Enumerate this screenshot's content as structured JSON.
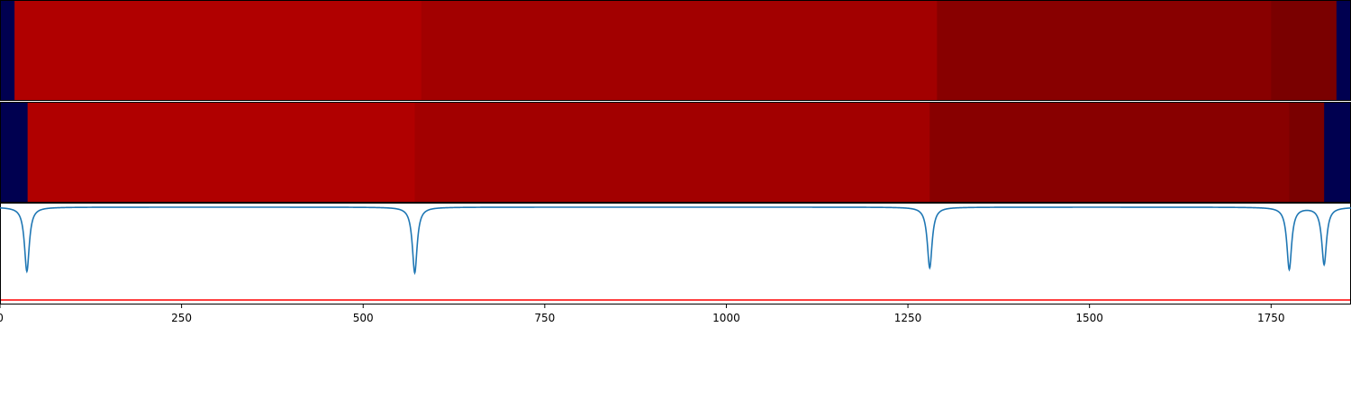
{
  "chart_data": [
    {
      "type": "heatmap",
      "panel": "top-strip",
      "x_range": [
        0,
        1860
      ],
      "segments": [
        {
          "start": 0,
          "end": 20,
          "color": "#000050"
        },
        {
          "start": 20,
          "end": 580,
          "color": "#b00000"
        },
        {
          "start": 580,
          "end": 1290,
          "color": "#a20000"
        },
        {
          "start": 1290,
          "end": 1750,
          "color": "#880000"
        },
        {
          "start": 1750,
          "end": 1840,
          "color": "#7a0000"
        },
        {
          "start": 1840,
          "end": 1860,
          "color": "#000050"
        }
      ]
    },
    {
      "type": "heatmap",
      "panel": "middle-strip",
      "x_range": [
        0,
        1860
      ],
      "segments": [
        {
          "start": 0,
          "end": 38,
          "color": "#000050"
        },
        {
          "start": 38,
          "end": 571,
          "color": "#b00000"
        },
        {
          "start": 571,
          "end": 1280,
          "color": "#a20000"
        },
        {
          "start": 1280,
          "end": 1775,
          "color": "#880000"
        },
        {
          "start": 1775,
          "end": 1823,
          "color": "#7a0000"
        },
        {
          "start": 1823,
          "end": 1860,
          "color": "#000050"
        }
      ]
    },
    {
      "type": "line",
      "panel": "bottom-signal",
      "x_range": [
        0,
        1860
      ],
      "y_range": [
        -1.35,
        0.05
      ],
      "xticks": [
        0,
        250,
        500,
        750,
        1000,
        1250,
        1500,
        1750
      ],
      "baseline": 0,
      "series": [
        {
          "color": "#1f77b4",
          "dips": [
            {
              "x": 37,
              "depth": 0.9
            },
            {
              "x": 571,
              "depth": 0.92
            },
            {
              "x": 1280,
              "depth": 0.85
            },
            {
              "x": 1775,
              "depth": 0.87
            },
            {
              "x": 1823,
              "depth": 0.8
            }
          ]
        }
      ],
      "threshold": {
        "y": -1.3,
        "color": "#ff0000"
      }
    }
  ]
}
